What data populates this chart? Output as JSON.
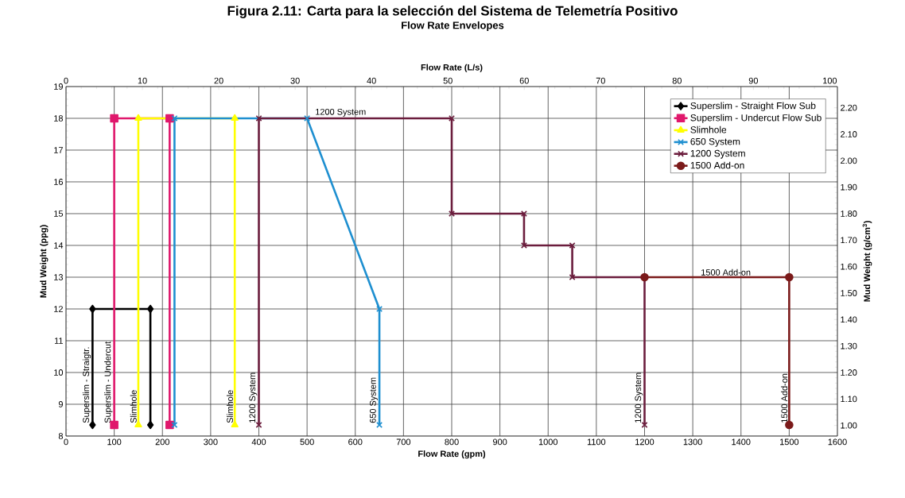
{
  "chart_data": {
    "type": "line",
    "title": "Figura 2.11: Carta para la selección del Sistema de Telemetría Positivo",
    "subtitle": "Flow Rate Envelopes",
    "xlabel": "Flow Rate (gpm)",
    "ylabel": "Mud Weight (ppg)",
    "x2label": "Flow Rate (L/s)",
    "y2label": "Mud Weight (g/cm$^{3}$)",
    "xlim": [
      0,
      1600
    ],
    "xticks": [
      0,
      100,
      200,
      300,
      400,
      500,
      600,
      700,
      800,
      900,
      1000,
      1100,
      1200,
      1300,
      1400,
      1500,
      1600
    ],
    "ylim": [
      8,
      19
    ],
    "yticks": [
      8,
      9,
      10,
      11,
      12,
      13,
      14,
      15,
      16,
      17,
      18,
      19
    ],
    "x2lim": [
      0,
      101
    ],
    "x2ticks": [
      0,
      10,
      20,
      30,
      40,
      50,
      60,
      70,
      80,
      90,
      100
    ],
    "y2lim": [
      0.96,
      2.28
    ],
    "y2ticks": [
      {
        "value": 1.0,
        "label": "1.00"
      },
      {
        "value": 1.1,
        "label": "1.10"
      },
      {
        "value": 1.2,
        "label": "1.20"
      },
      {
        "value": 1.3,
        "label": "1.30"
      },
      {
        "value": 1.4,
        "label": "1.40"
      },
      {
        "value": 1.5,
        "label": "1.50"
      },
      {
        "value": 1.6,
        "label": "1.60"
      },
      {
        "value": 1.7,
        "label": "1.70"
      },
      {
        "value": 1.8,
        "label": "1.80"
      },
      {
        "value": 1.9,
        "label": "1.90"
      },
      {
        "value": 2.0,
        "label": "2.00"
      },
      {
        "value": 2.1,
        "label": "2.10"
      },
      {
        "value": 2.2,
        "label": "2.20"
      }
    ],
    "grid": true,
    "legend": "top right",
    "series": [
      {
        "name": "Superslim - Straight Flow Sub",
        "color": "#000000",
        "marker": "diamond",
        "x": [
          55,
          55,
          175,
          175
        ],
        "values": [
          8.35,
          12,
          12,
          8.35
        ]
      },
      {
        "name": "Superslim - Undercut Flow Sub",
        "color": "#e0186c",
        "marker": "square",
        "x": [
          100,
          100,
          215,
          215
        ],
        "values": [
          8.35,
          18,
          18,
          8.35
        ]
      },
      {
        "name": "Slimhole",
        "color": "#ffff00",
        "marker": "triangle",
        "x": [
          150,
          150,
          350,
          350
        ],
        "values": [
          8.35,
          18,
          18,
          8.35
        ]
      },
      {
        "name": "650 System",
        "color": "#1e8fd0",
        "marker": "cross",
        "x": [
          225,
          225,
          500,
          650,
          650
        ],
        "values": [
          8.35,
          18,
          18,
          12,
          8.35
        ]
      },
      {
        "name": "1200 System",
        "color": "#6b1d3d",
        "marker": "cross",
        "x": [
          400,
          400,
          800,
          800,
          950,
          950,
          1050,
          1050,
          1200,
          1200
        ],
        "values": [
          8.35,
          18,
          18,
          15,
          15,
          14,
          14,
          13,
          13,
          8.35
        ]
      },
      {
        "name": "1500 Add-on",
        "color": "#7b1a1a",
        "marker": "circle",
        "x": [
          1200,
          1500,
          1500
        ],
        "values": [
          13,
          13,
          8.35
        ]
      }
    ],
    "annotations": [
      {
        "text": "1200 System",
        "x": 500,
        "y": 18
      },
      {
        "text": "1500 Add-on",
        "x": 1300,
        "y": 13
      },
      {
        "text": "Superslim - Straigtr.",
        "x": 55,
        "y": 8.35
      },
      {
        "text": "Superslim - Undercut",
        "x": 100,
        "y": 8.35
      },
      {
        "text": "Slimhole",
        "x": 150,
        "y": 8.35
      },
      {
        "text": "Slimhole",
        "x": 350,
        "y": 8.35
      },
      {
        "text": "1200 System",
        "x": 400,
        "y": 8.35
      },
      {
        "text": "650 System",
        "x": 650,
        "y": 8.35
      },
      {
        "text": "1200 System",
        "x": 1200,
        "y": 8.35
      },
      {
        "text": "1500 Add-on",
        "x": 1500,
        "y": 8.35
      }
    ]
  }
}
